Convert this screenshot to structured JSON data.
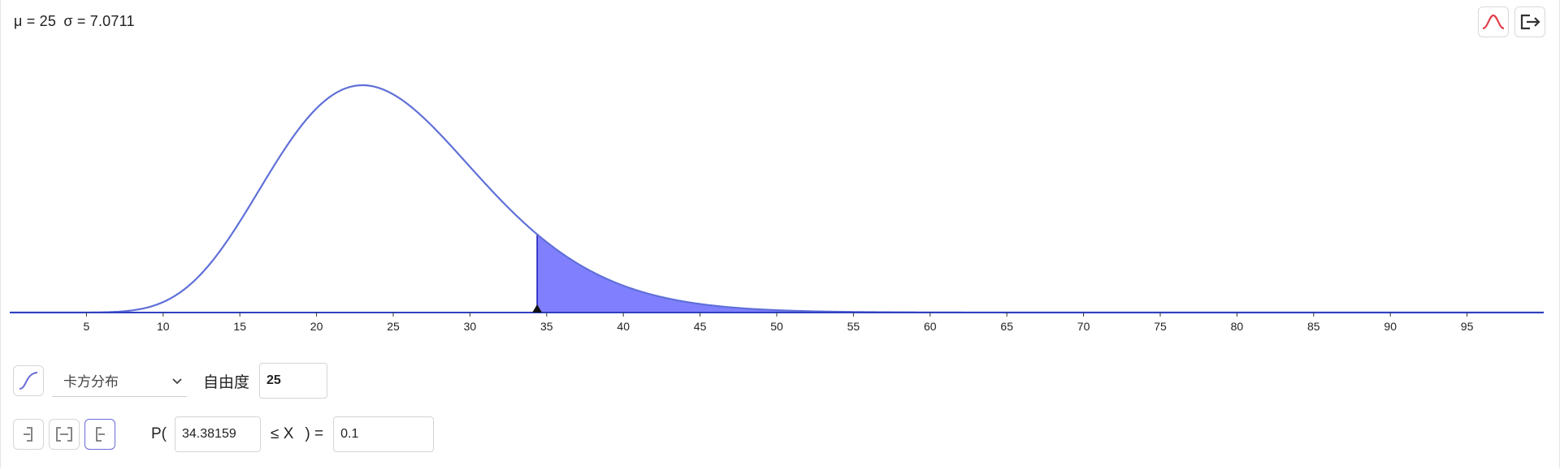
{
  "stats": {
    "mu": "μ = 25",
    "sigma": "σ = 7.0711"
  },
  "toolbar": {
    "distribution_icon": "bell-curve-icon",
    "export_icon": "export-icon"
  },
  "controls": {
    "distribution": {
      "icon": "cdf-curve-icon",
      "selected": "卡方分布"
    },
    "df_label": "自由度",
    "df_value": "25",
    "interval_buttons": [
      {
        "name": "left-sided-interval-button",
        "icon": "left-bracket-icon",
        "active": false
      },
      {
        "name": "two-sided-interval-button",
        "icon": "two-sided-bracket-icon",
        "active": false
      },
      {
        "name": "right-sided-interval-button",
        "icon": "right-bracket-icon",
        "active": true
      }
    ],
    "prob_open": "P(",
    "lower_bound": "34.38159",
    "leq_x": "≤ X",
    "close_eq": ") =",
    "probability": "0.1"
  },
  "chart_data": {
    "type": "area",
    "distribution": "chi-squared",
    "df": 25,
    "xlim": [
      0,
      100
    ],
    "x_ticks": [
      5,
      10,
      15,
      20,
      25,
      30,
      35,
      40,
      45,
      50,
      55,
      60,
      65,
      70,
      75,
      80,
      85,
      90,
      95
    ],
    "shaded_from": 34.38159,
    "shaded_to": 100,
    "colors": {
      "curve": "#6070d8",
      "fill": "#8080ff",
      "fill_edge": "#2020b8",
      "axis": "#3040c0"
    }
  }
}
